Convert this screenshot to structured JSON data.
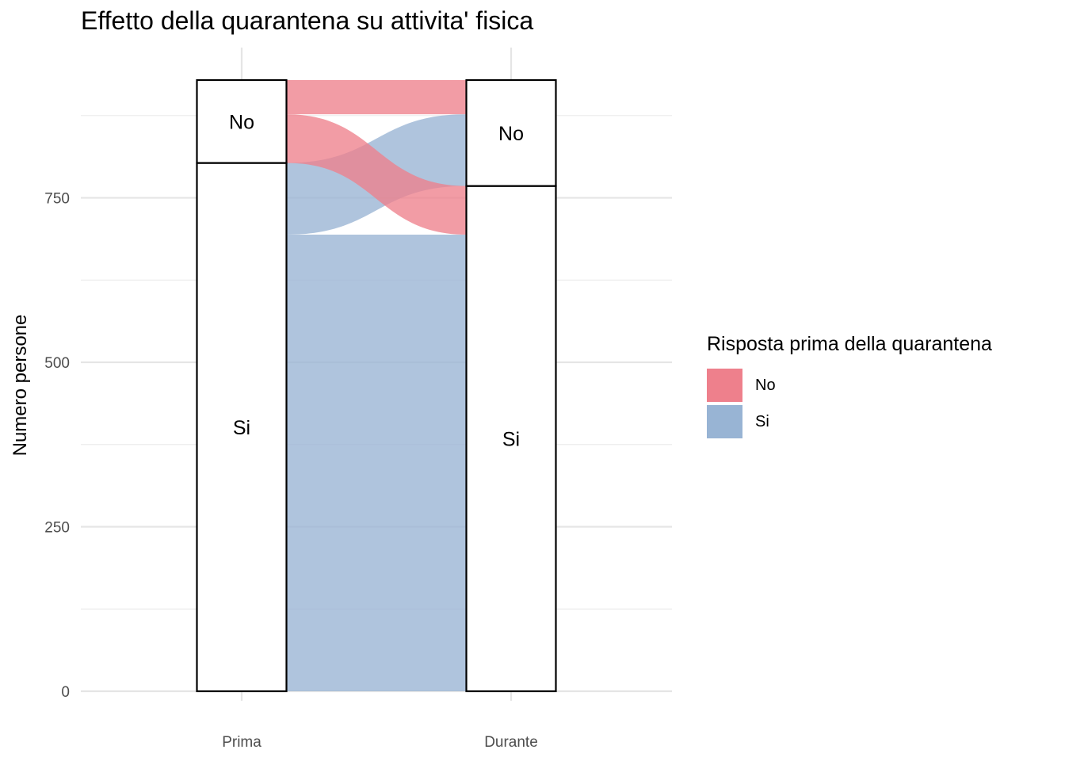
{
  "title": "Effetto della quarantena su attivita' fisica",
  "chart_data": {
    "type": "alluvial",
    "title": "Effetto della quarantena su attivita' fisica",
    "xlabel": "",
    "ylabel": "Numero persone",
    "ylim": [
      0,
      930
    ],
    "y_ticks": [
      0,
      250,
      500,
      750
    ],
    "grid": true,
    "axes": [
      "Prima",
      "Durante"
    ],
    "strata": {
      "Prima": [
        {
          "label": "Si",
          "value": 803
        },
        {
          "label": "No",
          "value": 126
        }
      ],
      "Durante": [
        {
          "label": "Si",
          "value": 768
        },
        {
          "label": "No",
          "value": 161
        }
      ]
    },
    "flows": [
      {
        "from": "Si",
        "to": "Si",
        "value": 694,
        "fill": "Si"
      },
      {
        "from": "Si",
        "to": "No",
        "value": 109,
        "fill": "Si"
      },
      {
        "from": "No",
        "to": "Si",
        "value": 74,
        "fill": "No"
      },
      {
        "from": "No",
        "to": "No",
        "value": 52,
        "fill": "No"
      }
    ],
    "legend": {
      "title": "Risposta prima della quarantena",
      "position": "right",
      "entries": [
        {
          "name": "No",
          "color": "#EE808C"
        },
        {
          "name": "Si",
          "color": "#98B4D4"
        }
      ]
    }
  }
}
